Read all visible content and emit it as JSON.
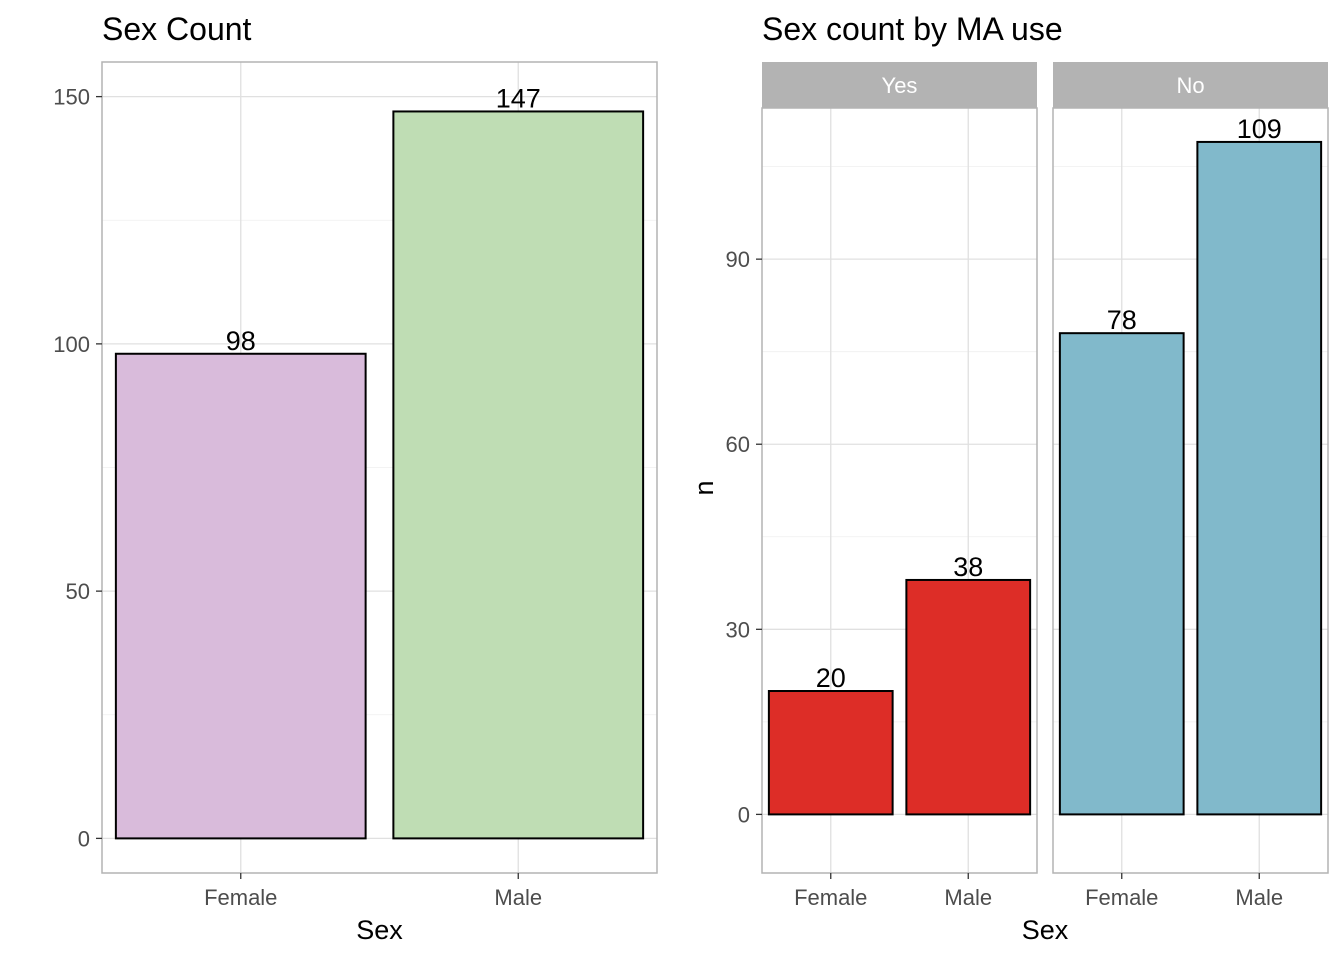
{
  "chart_data": [
    {
      "type": "bar",
      "title": "Sex Count",
      "xlabel": "Sex",
      "ylabel": "",
      "categories": [
        "Female",
        "Male"
      ],
      "values": [
        98,
        147
      ],
      "bar_colors": [
        "#D9BBDB",
        "#BFDDB4"
      ],
      "ylim": [
        -7,
        157
      ],
      "yticks": [
        0,
        50,
        100,
        150
      ],
      "grid": true,
      "legend": "none"
    },
    {
      "type": "bar",
      "title": "Sex count by MA use",
      "xlabel": "Sex",
      "ylabel": "n",
      "categories": [
        "Female",
        "Male"
      ],
      "facets": [
        {
          "name": "Yes",
          "values": [
            20,
            38
          ],
          "color": "#DD2D27"
        },
        {
          "name": "No",
          "values": [
            78,
            109
          ],
          "color": "#81B9CB"
        }
      ],
      "ylim": [
        -9.5,
        114.5
      ],
      "yticks": [
        0,
        30,
        60,
        90
      ],
      "grid": true,
      "legend": "none"
    }
  ]
}
